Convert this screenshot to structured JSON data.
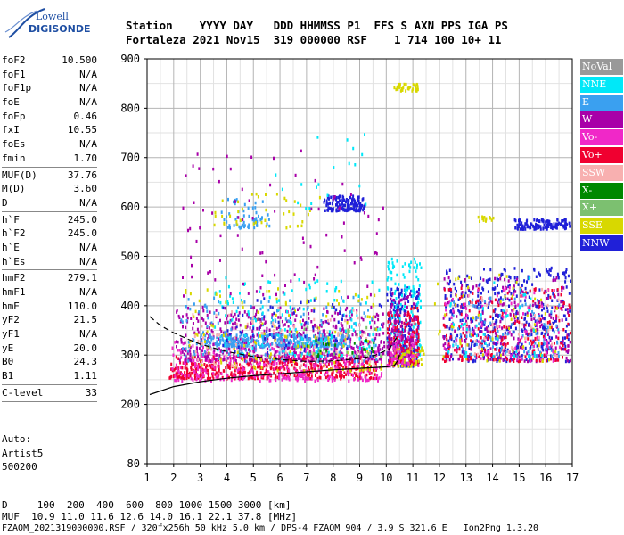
{
  "logo": {
    "line1": "Lowell",
    "line2": "DIGISONDE"
  },
  "header": {
    "line1": "Station    YYYY DAY   DDD HHMMSS P1  FFS S AXN PPS IGA PS",
    "line2": "Fortaleza 2021 Nov15  319 000000 RSF    1 714 100 10+ 11"
  },
  "params": [
    {
      "k": "foF2",
      "v": "10.500"
    },
    {
      "k": "foF1",
      "v": "N/A"
    },
    {
      "k": "foF1p",
      "v": "N/A"
    },
    {
      "k": "foE",
      "v": "N/A"
    },
    {
      "k": "foEp",
      "v": "0.46"
    },
    {
      "k": "fxI",
      "v": "10.55"
    },
    {
      "k": "foEs",
      "v": "N/A"
    },
    {
      "k": "fmin",
      "v": "1.70"
    },
    {
      "sep": true
    },
    {
      "k": "MUF(D)",
      "v": "37.76"
    },
    {
      "k": "M(D)",
      "v": "3.60"
    },
    {
      "k": "D",
      "v": "N/A"
    },
    {
      "sep": true
    },
    {
      "k": "h`F",
      "v": "245.0"
    },
    {
      "k": "h`F2",
      "v": "245.0"
    },
    {
      "k": "h`E",
      "v": "N/A"
    },
    {
      "k": "h`Es",
      "v": "N/A"
    },
    {
      "sep": true
    },
    {
      "k": "hmF2",
      "v": "279.1"
    },
    {
      "k": "hmF1",
      "v": "N/A"
    },
    {
      "k": "hmE",
      "v": "110.0"
    },
    {
      "k": "yF2",
      "v": "21.5"
    },
    {
      "k": "yF1",
      "v": "N/A"
    },
    {
      "k": "yE",
      "v": "20.0"
    },
    {
      "k": "B0",
      "v": "24.3"
    },
    {
      "k": "B1",
      "v": "1.11"
    },
    {
      "sep": true
    },
    {
      "k": "C-level",
      "v": "33"
    },
    {
      "sep": true
    }
  ],
  "autoscaling": {
    "line1": "Auto:",
    "line2": "Artist5",
    "line3": "500200"
  },
  "dmuf": {
    "line1": "D     100  200  400  600  800 1000 1500 3000 [km]",
    "line2": "MUF  10.9 11.0 11.6 12.6 14.0 16.1 22.1 37.8 [MHz]"
  },
  "footer": "FZAOM_2021319000000.RSF / 320fx256h 50 kHz 5.0 km / DPS-4 FZAOM 904 / 3.9 S 321.6 E   Ion2Png 1.3.20",
  "legend": [
    {
      "label": "NoVal",
      "color": "#999999",
      "text": "#ffffff"
    },
    {
      "label": "NNE",
      "color": "#00e8f8",
      "text": "#ffffff"
    },
    {
      "label": "E",
      "color": "#3aa0f0",
      "text": "#ffffff"
    },
    {
      "label": "W",
      "color": "#a800a8",
      "text": "#ffffff"
    },
    {
      "label": "Vo-",
      "color": "#f028c8",
      "text": "#ffffff"
    },
    {
      "label": "Vo+",
      "color": "#f00030",
      "text": "#ffffff"
    },
    {
      "label": "SSW",
      "color": "#f8b0b0",
      "text": "#ffffff"
    },
    {
      "label": "X-",
      "color": "#008800",
      "text": "#ffffff"
    },
    {
      "label": "X+",
      "color": "#7cc070",
      "text": "#ffffff"
    },
    {
      "label": "SSE",
      "color": "#d8d800",
      "text": "#ffffff"
    },
    {
      "label": "NNW",
      "color": "#2020d8",
      "text": "#ffffff"
    }
  ],
  "chart_data": {
    "type": "scatter",
    "title": "",
    "xlabel": "",
    "ylabel": "",
    "xlim": [
      1,
      17
    ],
    "ylim": [
      80,
      900
    ],
    "x_ticks": [
      1,
      2,
      3,
      4,
      5,
      6,
      7,
      8,
      9,
      10,
      11,
      12,
      13,
      14,
      15,
      16,
      17
    ],
    "y_ticks": [
      80,
      200,
      300,
      400,
      500,
      600,
      700,
      800,
      900
    ],
    "grid": true,
    "legend_position": "right",
    "trace_lines": [
      {
        "name": "",
        "style": "solid",
        "points": [
          [
            1.1,
            220
          ],
          [
            2,
            236
          ],
          [
            3,
            246
          ],
          [
            4,
            253
          ],
          [
            5,
            258
          ],
          [
            6,
            262
          ],
          [
            7,
            266
          ],
          [
            8,
            270
          ],
          [
            9,
            273
          ],
          [
            10,
            276
          ],
          [
            10.3,
            279
          ],
          [
            10.45,
            290
          ],
          [
            10.5,
            300
          ]
        ]
      },
      {
        "name": "",
        "style": "dashed",
        "points": [
          [
            1.1,
            378
          ],
          [
            1.5,
            360
          ],
          [
            2,
            345
          ],
          [
            2.5,
            333
          ],
          [
            3,
            322
          ],
          [
            4,
            307
          ],
          [
            5,
            297
          ],
          [
            6,
            291
          ],
          [
            7,
            287
          ],
          [
            8,
            288
          ],
          [
            9,
            293
          ],
          [
            9.6,
            300
          ],
          [
            10.1,
            312
          ],
          [
            10.45,
            340
          ]
        ]
      }
    ],
    "point_clusters": [
      {
        "color": "#f00030",
        "x": [
          1.8,
          9.6
        ],
        "y": [
          255,
          300
        ],
        "n": 520
      },
      {
        "color": "#f028c8",
        "x": [
          1.9,
          9.8
        ],
        "y": [
          250,
          330
        ],
        "n": 380
      },
      {
        "color": "#a800a8",
        "x": [
          2.0,
          9.9
        ],
        "y": [
          290,
          400
        ],
        "n": 520
      },
      {
        "color": "#3aa0f0",
        "x": [
          3.0,
          8.6
        ],
        "y": [
          320,
          345
        ],
        "n": 300
      },
      {
        "color": "#3aa0f0",
        "x": [
          2.2,
          9.6
        ],
        "y": [
          290,
          420
        ],
        "n": 160
      },
      {
        "color": "#00e8f8",
        "x": [
          3.5,
          9.8
        ],
        "y": [
          300,
          460
        ],
        "n": 150
      },
      {
        "color": "#d8d800",
        "x": [
          2.4,
          9.8
        ],
        "y": [
          270,
          440
        ],
        "n": 140
      },
      {
        "color": "#2020d8",
        "x": [
          3.8,
          9.8
        ],
        "y": [
          300,
          420
        ],
        "n": 80
      },
      {
        "color": "#f8b0b0",
        "x": [
          2.5,
          9.6
        ],
        "y": [
          280,
          400
        ],
        "n": 90
      },
      {
        "color": "#7cc070",
        "x": [
          6.5,
          9.8
        ],
        "y": [
          300,
          360
        ],
        "n": 30
      },
      {
        "color": "#008800",
        "x": [
          7.0,
          9.5
        ],
        "y": [
          300,
          340
        ],
        "n": 20
      },
      {
        "color": "#2020d8",
        "x": [
          10.0,
          11.2
        ],
        "y": [
          280,
          440
        ],
        "n": 220
      },
      {
        "color": "#00e8f8",
        "x": [
          10.0,
          11.3
        ],
        "y": [
          300,
          500
        ],
        "n": 160
      },
      {
        "color": "#f00030",
        "x": [
          10.0,
          11.2
        ],
        "y": [
          280,
          400
        ],
        "n": 160
      },
      {
        "color": "#a800a8",
        "x": [
          10.0,
          11.2
        ],
        "y": [
          300,
          430
        ],
        "n": 110
      },
      {
        "color": "#d8d800",
        "x": [
          10.2,
          11.4
        ],
        "y": [
          280,
          320
        ],
        "n": 60
      },
      {
        "color": "#f028c8",
        "x": [
          10.0,
          11.2
        ],
        "y": [
          280,
          360
        ],
        "n": 60
      },
      {
        "color": "#2020d8",
        "x": [
          12.1,
          16.9
        ],
        "y": [
          290,
          480
        ],
        "n": 420
      },
      {
        "color": "#a800a8",
        "x": [
          12.1,
          16.9
        ],
        "y": [
          290,
          460
        ],
        "n": 220
      },
      {
        "color": "#f00030",
        "x": [
          12.1,
          16.9
        ],
        "y": [
          290,
          440
        ],
        "n": 200
      },
      {
        "color": "#3aa0f0",
        "x": [
          12.4,
          16.5
        ],
        "y": [
          300,
          420
        ],
        "n": 110
      },
      {
        "color": "#f028c8",
        "x": [
          12.1,
          16.5
        ],
        "y": [
          290,
          440
        ],
        "n": 90
      },
      {
        "color": "#d8d800",
        "x": [
          11.7,
          16.5
        ],
        "y": [
          290,
          470
        ],
        "n": 60
      },
      {
        "color": "#00e8f8",
        "x": [
          12.3,
          16.0
        ],
        "y": [
          300,
          460
        ],
        "n": 40
      },
      {
        "color": "#f8b0b0",
        "x": [
          13.0,
          16.5
        ],
        "y": [
          300,
          440
        ],
        "n": 40
      },
      {
        "color": "#2020d8",
        "x": [
          14.8,
          16.9
        ],
        "y": [
          558,
          578
        ],
        "n": 130
      },
      {
        "color": "#d8d800",
        "x": [
          13.4,
          14.1
        ],
        "y": [
          573,
          583
        ],
        "n": 14
      },
      {
        "color": "#2020d8",
        "x": [
          7.6,
          9.2
        ],
        "y": [
          595,
          625
        ],
        "n": 150
      },
      {
        "color": "#3aa0f0",
        "x": [
          3.7,
          5.6
        ],
        "y": [
          560,
          620
        ],
        "n": 60
      },
      {
        "color": "#d8d800",
        "x": [
          3.5,
          7.5
        ],
        "y": [
          560,
          640
        ],
        "n": 40
      },
      {
        "color": "#a800a8",
        "x": [
          2.3,
          9.9
        ],
        "y": [
          420,
          720
        ],
        "n": 90
      },
      {
        "color": "#00e8f8",
        "x": [
          5.5,
          9.5
        ],
        "y": [
          600,
          780
        ],
        "n": 20
      },
      {
        "color": "#d8d800",
        "x": [
          10.2,
          11.2
        ],
        "y": [
          838,
          852
        ],
        "n": 40
      }
    ]
  }
}
